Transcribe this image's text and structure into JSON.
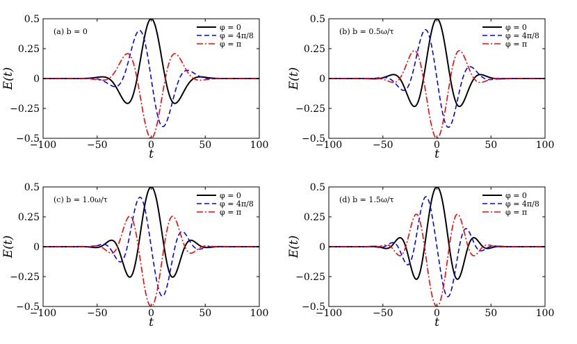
{
  "chart_data": [
    {
      "type": "line",
      "panel_label": "(a) b = 0",
      "xlabel": "t",
      "ylabel": "E(t)",
      "xlim": [
        -100,
        100
      ],
      "ylim": [
        -0.5,
        0.5
      ],
      "xticks": [
        -100,
        -50,
        0,
        50,
        100
      ],
      "yticks": [
        -0.5,
        -0.25,
        0,
        0.25,
        0.5
      ],
      "xtick_labels": [
        "−100",
        "−50",
        "0",
        "50",
        "100"
      ],
      "ytick_labels": [
        "−0.5",
        "−0.25",
        "0",
        "0.25",
        "0.5"
      ],
      "legend_position": "top-right",
      "chirp_b": 0,
      "series": [
        {
          "name": "φ = 0",
          "phase": 0,
          "color": "#000000",
          "style": "solid"
        },
        {
          "name": "φ = 4π/8",
          "phase": 1.5708,
          "color": "#0000ff",
          "style": "dashed"
        },
        {
          "name": "φ = π",
          "phase": 3.14159,
          "color": "#ff0000",
          "style": "dashdot"
        }
      ]
    },
    {
      "type": "line",
      "panel_label": "(b) b = 0.5ω/τ",
      "xlabel": "t",
      "ylabel": "E(t)",
      "xlim": [
        -100,
        100
      ],
      "ylim": [
        -0.5,
        0.5
      ],
      "xticks": [
        -100,
        -50,
        0,
        50,
        100
      ],
      "yticks": [
        -0.5,
        -0.25,
        0,
        0.25,
        0.5
      ],
      "xtick_labels": [
        "−100",
        "−50",
        "0",
        "50",
        "100"
      ],
      "ytick_labels": [
        "−0.5",
        "−0.25",
        "0",
        "0.25",
        "0.5"
      ],
      "legend_position": "top-right",
      "chirp_b": 0.5,
      "series": [
        {
          "name": "φ = 0",
          "phase": 0,
          "color": "#000000",
          "style": "solid"
        },
        {
          "name": "φ = 4π/8",
          "phase": 1.5708,
          "color": "#0000ff",
          "style": "dashed"
        },
        {
          "name": "φ = π",
          "phase": 3.14159,
          "color": "#ff0000",
          "style": "dashdot"
        }
      ]
    },
    {
      "type": "line",
      "panel_label": "(c) b = 1.0ω/τ",
      "xlabel": "t",
      "ylabel": "E(t)",
      "xlim": [
        -100,
        100
      ],
      "ylim": [
        -0.5,
        0.5
      ],
      "xticks": [
        -100,
        -50,
        0,
        50,
        100
      ],
      "yticks": [
        -0.5,
        -0.25,
        0,
        0.25,
        0.5
      ],
      "xtick_labels": [
        "−100",
        "−50",
        "0",
        "50",
        "100"
      ],
      "ytick_labels": [
        "−0.5",
        "−0.25",
        "0",
        "0.25",
        "0.5"
      ],
      "legend_position": "top-right",
      "chirp_b": 1.0,
      "series": [
        {
          "name": "φ = 0",
          "phase": 0,
          "color": "#000000",
          "style": "solid"
        },
        {
          "name": "φ = 4π/8",
          "phase": 1.5708,
          "color": "#0000ff",
          "style": "dashed"
        },
        {
          "name": "φ = π",
          "phase": 3.14159,
          "color": "#ff0000",
          "style": "dashdot"
        }
      ]
    },
    {
      "type": "line",
      "panel_label": "(d) b = 1.5ω/τ",
      "xlabel": "t",
      "ylabel": "E(t)",
      "xlim": [
        -100,
        100
      ],
      "ylim": [
        -0.5,
        0.5
      ],
      "xticks": [
        -100,
        -50,
        0,
        50,
        100
      ],
      "yticks": [
        -0.5,
        -0.25,
        0,
        0.25,
        0.5
      ],
      "xtick_labels": [
        "−100",
        "−50",
        "0",
        "50",
        "100"
      ],
      "ytick_labels": [
        "−0.5",
        "−0.25",
        "0",
        "0.25",
        "0.5"
      ],
      "legend_position": "top-right",
      "chirp_b": 1.5,
      "series": [
        {
          "name": "φ = 0",
          "phase": 0,
          "color": "#000000",
          "style": "solid"
        },
        {
          "name": "φ = 4π/8",
          "phase": 1.5708,
          "color": "#0000ff",
          "style": "dashed"
        },
        {
          "name": "φ = π",
          "phase": 3.14159,
          "color": "#ff0000",
          "style": "dashdot"
        }
      ]
    }
  ]
}
